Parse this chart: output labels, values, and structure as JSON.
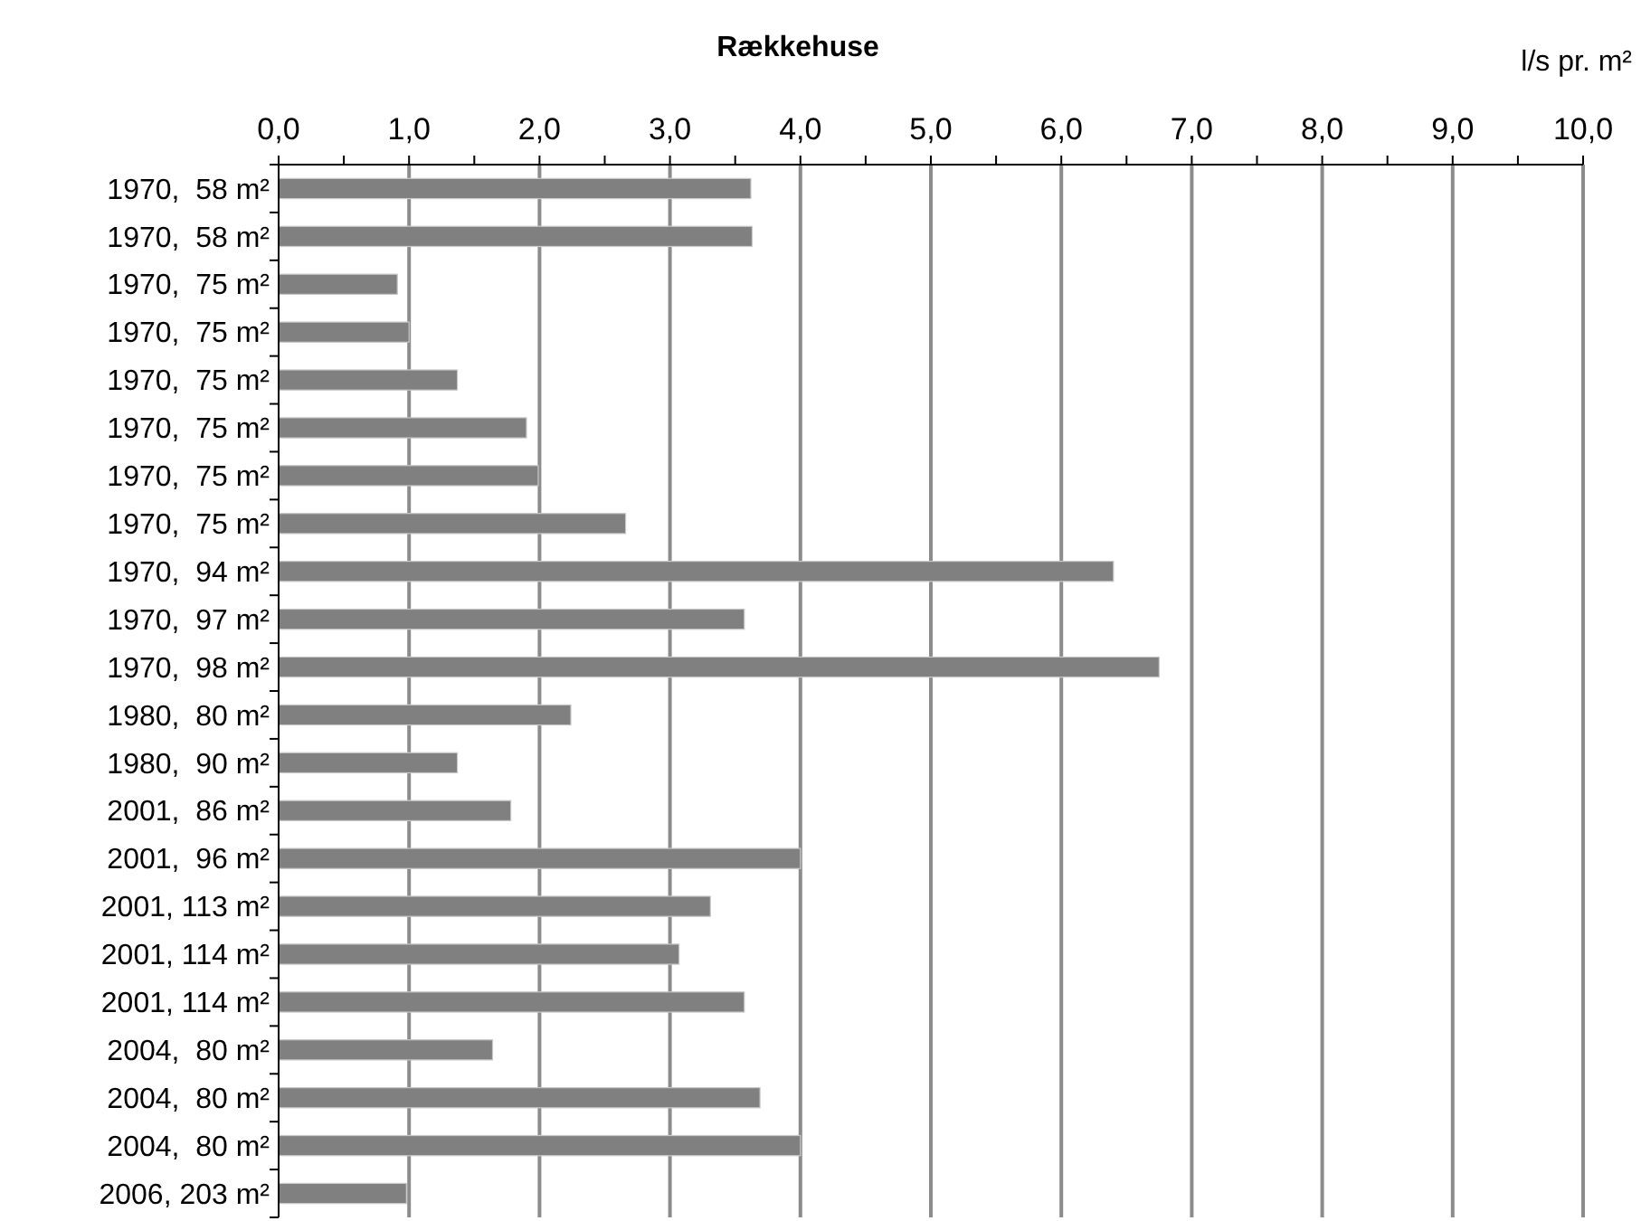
{
  "chart_data": {
    "type": "bar",
    "orientation": "horizontal",
    "title": "Rækkehuse",
    "xlabel": "l/s pr. m²",
    "categories": [
      "1970,  58 m²",
      "1970,  58 m²",
      "1970,  75 m²",
      "1970,  75 m²",
      "1970,  75 m²",
      "1970,  75 m²",
      "1970,  75 m²",
      "1970,  75 m²",
      "1970,  94 m²",
      "1970,  97 m²",
      "1970,  98 m²",
      "1980,  80 m²",
      "1980,  90 m²",
      "2001,  86 m²",
      "2001,  96 m²",
      "2001, 113 m²",
      "2001, 114 m²",
      "2001, 114 m²",
      "2004,  80 m²",
      "2004,  80 m²",
      "2004,  80 m²",
      "2006, 203 m²"
    ],
    "values": [
      3.62,
      3.63,
      0.91,
      1.0,
      1.37,
      1.9,
      1.99,
      2.66,
      6.4,
      3.57,
      6.75,
      2.24,
      1.37,
      1.78,
      4.0,
      3.31,
      3.07,
      3.57,
      1.64,
      3.69,
      4.0,
      0.98
    ],
    "color": "#808080",
    "xlim": [
      0,
      10
    ],
    "xticks": [
      {
        "value": 0,
        "label": "0,0"
      },
      {
        "value": 0.5,
        "label": null
      },
      {
        "value": 1,
        "label": "1,0"
      },
      {
        "value": 1.5,
        "label": null
      },
      {
        "value": 2,
        "label": "2,0"
      },
      {
        "value": 2.5,
        "label": null
      },
      {
        "value": 3,
        "label": "3,0"
      },
      {
        "value": 3.5,
        "label": null
      },
      {
        "value": 4,
        "label": "4,0"
      },
      {
        "value": 4.5,
        "label": null
      },
      {
        "value": 5,
        "label": "5,0"
      },
      {
        "value": 5.5,
        "label": null
      },
      {
        "value": 6,
        "label": "6,0"
      },
      {
        "value": 6.5,
        "label": null
      },
      {
        "value": 7,
        "label": "7,0"
      },
      {
        "value": 7.5,
        "label": null
      },
      {
        "value": 8,
        "label": "8,0"
      },
      {
        "value": 8.5,
        "label": null
      },
      {
        "value": 9,
        "label": "9,0"
      },
      {
        "value": 9.5,
        "label": null
      },
      {
        "value": 10,
        "label": "10,0"
      }
    ],
    "grid": "x"
  }
}
